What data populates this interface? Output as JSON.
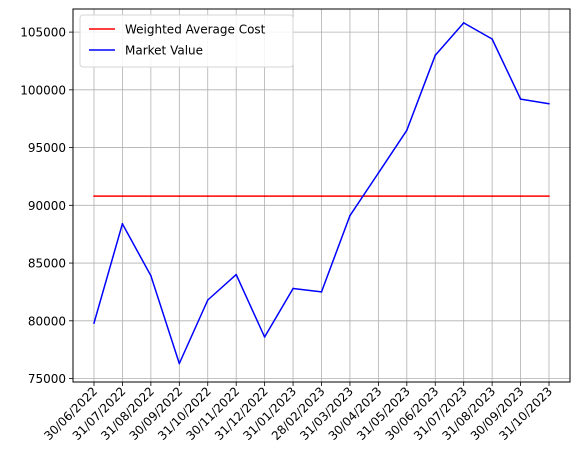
{
  "chart_data": {
    "type": "line",
    "title": "",
    "xlabel": "",
    "ylabel": "",
    "x": [
      "30/06/2022",
      "31/07/2022",
      "31/08/2022",
      "30/09/2022",
      "31/10/2022",
      "30/11/2022",
      "31/12/2022",
      "31/01/2023",
      "28/02/2023",
      "31/03/2023",
      "30/04/2023",
      "31/05/2023",
      "30/06/2023",
      "31/07/2023",
      "31/08/2023",
      "30/09/2023",
      "31/10/2023"
    ],
    "ylim": [
      74700,
      107000
    ],
    "yticks": [
      75000,
      80000,
      85000,
      90000,
      95000,
      100000,
      105000
    ],
    "grid": true,
    "legend_position": "top-left",
    "series": [
      {
        "name": "Weighted Average Cost",
        "color": "#ff0000",
        "values": [
          90800,
          90800,
          90800,
          90800,
          90800,
          90800,
          90800,
          90800,
          90800,
          90800,
          90800,
          90800,
          90800,
          90800,
          90800,
          90800,
          90800
        ]
      },
      {
        "name": "Market Value",
        "color": "#0000ff",
        "values": [
          79800,
          88400,
          83900,
          76300,
          81800,
          84000,
          78600,
          82800,
          82500,
          89100,
          92800,
          96500,
          103000,
          105800,
          104400,
          99200,
          98800
        ]
      }
    ]
  }
}
